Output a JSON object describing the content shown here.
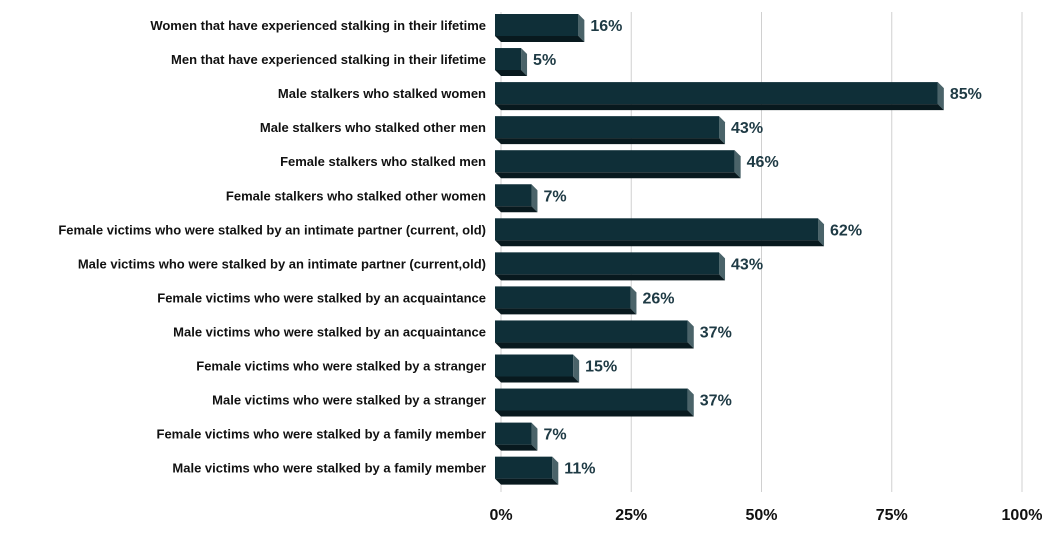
{
  "chart_data": {
    "type": "bar",
    "orientation": "horizontal",
    "categories": [
      "Women that have experienced stalking in their lifetime",
      "Men that have experienced stalking in their lifetime",
      "Male stalkers who stalked women",
      "Male stalkers who stalked other men",
      "Female stalkers who stalked men",
      "Female stalkers who stalked other women",
      "Female victims who were stalked by an intimate partner (current, old)",
      "Male victims who were stalked by an intimate partner (current,old)",
      "Female victims who were stalked by an acquaintance",
      "Male victims who were stalked by an acquaintance",
      "Female victims who were stalked by a stranger",
      "Male victims who were stalked by a stranger",
      "Female victims who were stalked by a family member",
      "Male victims who were stalked by a family member"
    ],
    "values": [
      16,
      5,
      85,
      43,
      46,
      7,
      62,
      43,
      26,
      37,
      15,
      37,
      7,
      11
    ],
    "value_labels": [
      "16%",
      "5%",
      "85%",
      "43%",
      "46%",
      "7%",
      "62%",
      "43%",
      "26%",
      "37%",
      "15%",
      "37%",
      "7%",
      "11%"
    ],
    "x_ticks": [
      "0%",
      "25%",
      "50%",
      "75%",
      "100%"
    ],
    "xlim": [
      0,
      100
    ],
    "grid": true,
    "legend": "none",
    "colors": {
      "bar_face": "#0f2f38",
      "bar_side": "#4a6369",
      "bar_bottom": "#08191e",
      "grid": "#d0d0d0",
      "value_text": "#1e3a44"
    }
  }
}
